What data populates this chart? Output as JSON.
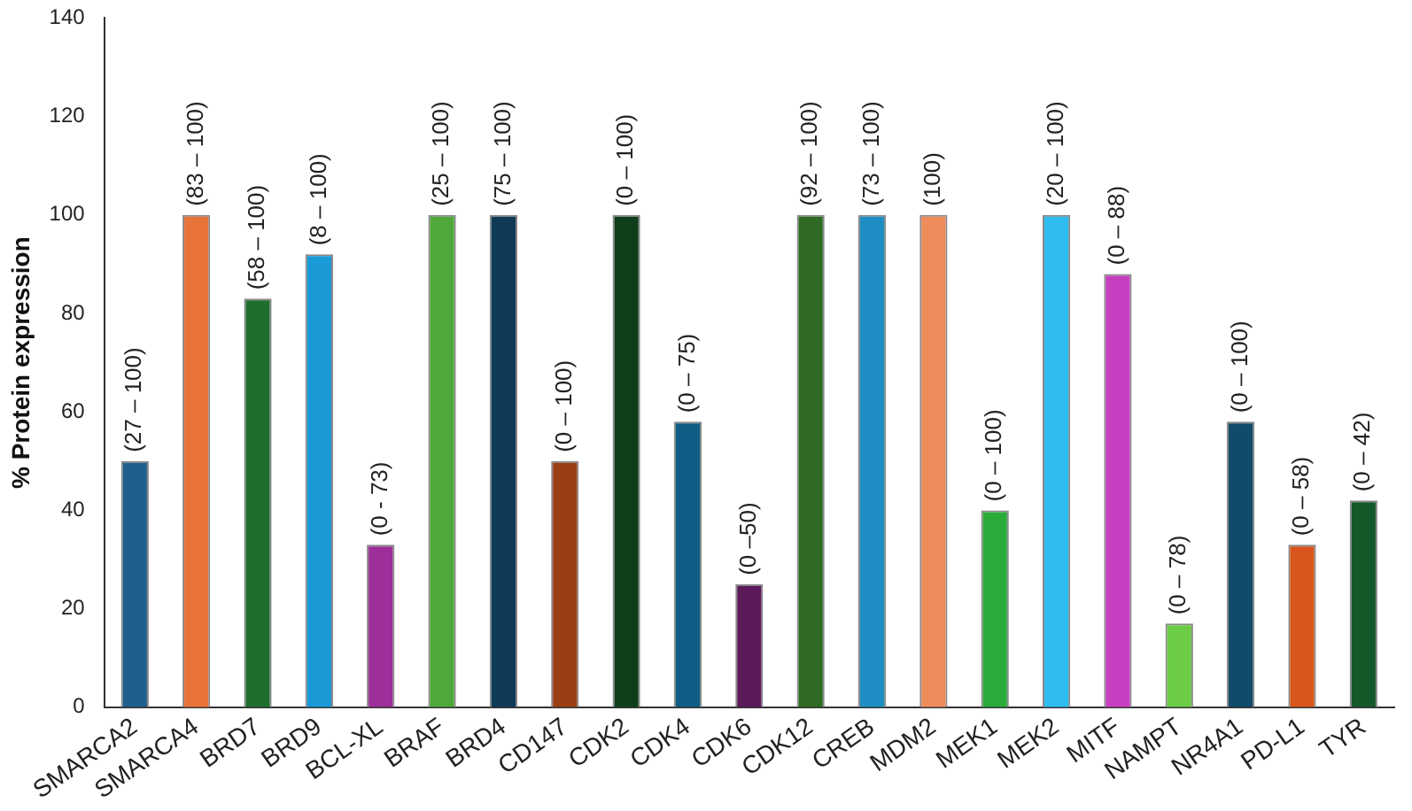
{
  "chart_data": {
    "type": "bar",
    "ylabel": "% Protein expression",
    "categories": [
      "SMARCA2",
      "SMARCA4",
      "BRD7",
      "BRD9",
      "BCL-XL",
      "BRAF",
      "BRD4",
      "CD147",
      "CDK2",
      "CDK4",
      "CDK6",
      "CDK12",
      "CREB",
      "MDM2",
      "MEK1",
      "MEK2",
      "MITF",
      "NAMPT",
      "NR4A1",
      "PD-L1",
      "TYR"
    ],
    "values": [
      50,
      100,
      83,
      92,
      33,
      100,
      100,
      50,
      100,
      58,
      25,
      100,
      100,
      100,
      40,
      100,
      88,
      17,
      58,
      33,
      42
    ],
    "colors": [
      "#1f5f8b",
      "#e8733a",
      "#1e6e2e",
      "#1a9ad6",
      "#9c2f9a",
      "#4fa83a",
      "#0e3a57",
      "#9a3f14",
      "#0f3f1a",
      "#0f5d84",
      "#5a1a5a",
      "#2e6a22",
      "#1f8ec4",
      "#ee8c5c",
      "#2aab3a",
      "#2fbcee",
      "#c83ec0",
      "#6ccc45",
      "#124a6a",
      "#d8561c",
      "#15592a"
    ],
    "value_labels": [
      "(27 – 100)",
      "(83 – 100)",
      "(58 – 100)",
      "(8 – 100)",
      "(0 - 73)",
      "(25 – 100)",
      "(75 – 100)",
      "(0 – 100)",
      "(0 – 100)",
      "(0 – 75)",
      "(0 –50)",
      "(92 – 100)",
      "(73 – 100)",
      "(100)",
      "(0 – 100)",
      "(20 – 100)",
      "(0 – 88)",
      "(0 – 78)",
      "(0 – 100)",
      "(0 – 58)",
      "(0 – 42)"
    ],
    "ylim": [
      0,
      140
    ],
    "yticks": [
      0,
      20,
      40,
      60,
      80,
      100,
      120,
      140
    ],
    "grid": false,
    "legend": false
  }
}
